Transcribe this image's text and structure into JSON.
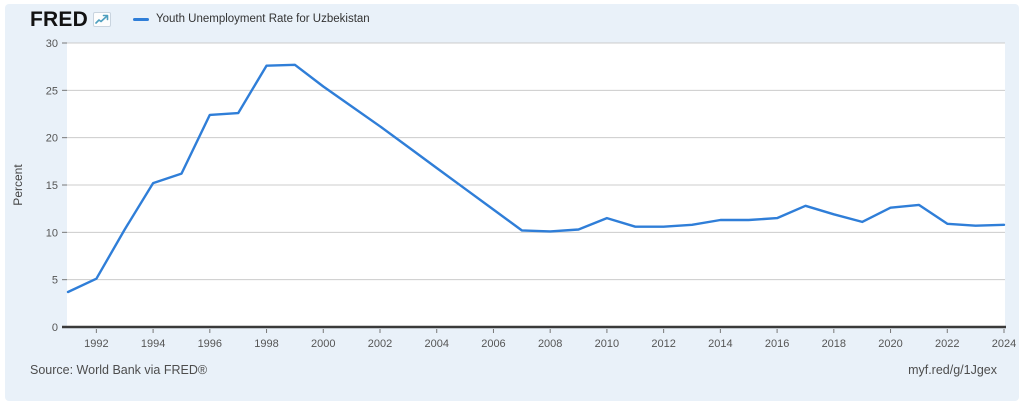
{
  "header": {
    "logo_text": "FRED",
    "legend": {
      "series_label": "Youth Unemployment Rate for Uzbekistan"
    }
  },
  "footer": {
    "source": "Source: World Bank via FRED®",
    "short_url": "myf.red/g/1Jgex"
  },
  "icons": {
    "logo_chart_icon": "fred-sparkline-arrow-icon"
  },
  "colors": {
    "line": "#2f7ed8",
    "card_background": "#e9f1f9",
    "plot_background": "#ffffff",
    "grid": "#cccccc",
    "axis": "#3a3a3a",
    "tick_text": "#555555",
    "axis_title_text": "#444444",
    "logo_icon_stroke": "#4e9fbf"
  },
  "chart_data": {
    "type": "line",
    "title": "Youth Unemployment Rate for Uzbekistan",
    "xlabel": "",
    "ylabel": "Percent",
    "ylim": [
      0,
      30
    ],
    "ytick_interval": 5,
    "ytick_labels": [
      "0",
      "5",
      "10",
      "15",
      "20",
      "25",
      "30"
    ],
    "xlim": [
      1991,
      2024
    ],
    "xtick_labels": [
      "1992",
      "1994",
      "1996",
      "1998",
      "2000",
      "2002",
      "2004",
      "2006",
      "2008",
      "2010",
      "2012",
      "2014",
      "2016",
      "2018",
      "2020",
      "2022",
      "2024"
    ],
    "grid": true,
    "legend_position": "top-left",
    "series": [
      {
        "name": "Youth Unemployment Rate for Uzbekistan",
        "x": [
          1991,
          1992,
          1993,
          1994,
          1995,
          1996,
          1997,
          1998,
          1999,
          2000,
          2001,
          2002,
          2003,
          2004,
          2005,
          2006,
          2007,
          2008,
          2009,
          2010,
          2011,
          2012,
          2013,
          2014,
          2015,
          2016,
          2017,
          2018,
          2019,
          2020,
          2021,
          2022,
          2023,
          2024
        ],
        "values": [
          3.7,
          5.1,
          10.3,
          15.2,
          16.2,
          22.4,
          22.6,
          27.6,
          27.7,
          25.4,
          23.3,
          21.2,
          19.0,
          16.8,
          14.6,
          12.4,
          10.2,
          10.1,
          10.3,
          11.5,
          10.6,
          10.6,
          10.8,
          11.3,
          11.3,
          11.5,
          12.8,
          11.9,
          11.1,
          12.6,
          12.9,
          10.9,
          10.7,
          10.8
        ]
      }
    ]
  }
}
